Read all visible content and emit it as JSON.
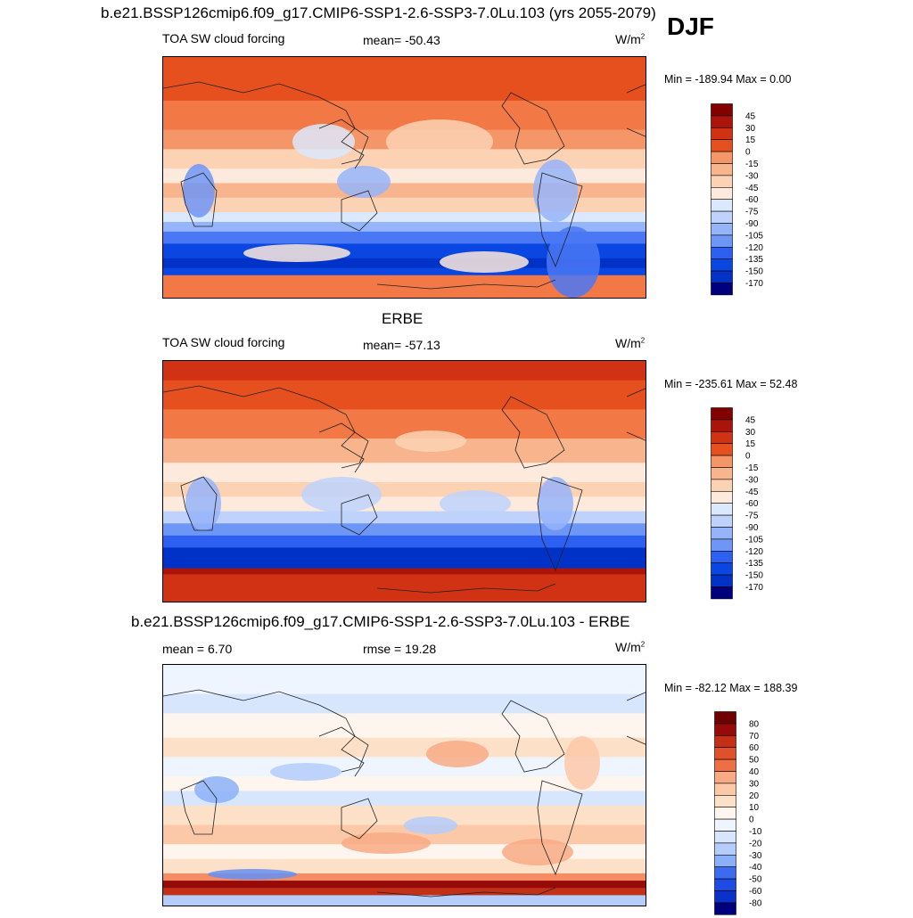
{
  "figure": {
    "season": "DJF",
    "palette_main": [
      "#00007f",
      "#0032c8",
      "#0a46e1",
      "#2d5ff0",
      "#4a78f5",
      "#6e96f7",
      "#96b4f9",
      "#bed2fb",
      "#dce8fc",
      "#fdeadc",
      "#fbd2b4",
      "#f8b48c",
      "#f59669",
      "#f27846",
      "#e6501e",
      "#d23214",
      "#aa140a",
      "#820000"
    ],
    "palette_diff": [
      "#00007f",
      "#0a32c8",
      "#1e4be6",
      "#3c6af0",
      "#6490f5",
      "#8cb0f8",
      "#b4cdfb",
      "#d7e6fd",
      "#eef5ff",
      "#fef6ee",
      "#fde0c8",
      "#fbc8a8",
      "#f8aa84",
      "#f48c64",
      "#ee6e46",
      "#e0502a",
      "#c23018",
      "#960a0a",
      "#6e0000"
    ]
  },
  "panels": [
    {
      "title": "b.e21.BSSP126cmip6.f09_g17.CMIP6-SSP1-2.6-SSP3-7.0Lu.103 (yrs 2055-2079)",
      "left_label": "TOA SW cloud forcing",
      "center_label": "mean= -50.43",
      "units_base": "W/m",
      "units_exp": "2",
      "minmax": "Min = -189.94 Max =   0.00",
      "colorbar_labels": [
        "45",
        "30",
        "15",
        "0",
        "-15",
        "-30",
        "-45",
        "-60",
        "-75",
        "-90",
        "-105",
        "-120",
        "-135",
        "-150",
        "-170"
      ],
      "map_kind": "model"
    },
    {
      "title": "ERBE",
      "left_label": "TOA SW cloud forcing",
      "center_label": "mean= -57.13",
      "units_base": "W/m",
      "units_exp": "2",
      "minmax": "Min = -235.61 Max =  52.48",
      "colorbar_labels": [
        "45",
        "30",
        "15",
        "0",
        "-15",
        "-30",
        "-45",
        "-60",
        "-75",
        "-90",
        "-105",
        "-120",
        "-135",
        "-150",
        "-170"
      ],
      "map_kind": "obs"
    },
    {
      "title": "b.e21.BSSP126cmip6.f09_g17.CMIP6-SSP1-2.6-SSP3-7.0Lu.103 - ERBE",
      "left_label": "mean =   6.70",
      "center_label": "rmse =  19.28",
      "units_base": "W/m",
      "units_exp": "2",
      "minmax": "Min = -82.12 Max = 188.39",
      "colorbar_labels": [
        "80",
        "70",
        "60",
        "50",
        "40",
        "30",
        "20",
        "10",
        "0",
        "-10",
        "-20",
        "-30",
        "-40",
        "-50",
        "-60",
        "-80"
      ],
      "map_kind": "diff"
    }
  ],
  "chart_data": [
    {
      "type": "heatmap",
      "title": "b.e21.BSSP126cmip6.f09_g17.CMIP6-SSP1-2.6-SSP3-7.0Lu.103 (yrs 2055-2079)",
      "variable": "TOA SW cloud forcing",
      "season": "DJF",
      "mean": -50.43,
      "min": -189.94,
      "max": 0.0,
      "units": "W/m2",
      "contour_levels": [
        -170,
        -150,
        -135,
        -120,
        -105,
        -90,
        -75,
        -60,
        -45,
        -30,
        -15,
        0,
        15,
        30,
        45
      ]
    },
    {
      "type": "heatmap",
      "title": "ERBE",
      "variable": "TOA SW cloud forcing",
      "season": "DJF",
      "mean": -57.13,
      "min": -235.61,
      "max": 52.48,
      "units": "W/m2",
      "contour_levels": [
        -170,
        -150,
        -135,
        -120,
        -105,
        -90,
        -75,
        -60,
        -45,
        -30,
        -15,
        0,
        15,
        30,
        45
      ]
    },
    {
      "type": "heatmap",
      "title": "b.e21.BSSP126cmip6.f09_g17.CMIP6-SSP1-2.6-SSP3-7.0Lu.103 - ERBE",
      "season": "DJF",
      "mean": 6.7,
      "rmse": 19.28,
      "min": -82.12,
      "max": 188.39,
      "units": "W/m2",
      "contour_levels": [
        -80,
        -60,
        -50,
        -40,
        -30,
        -20,
        -10,
        0,
        10,
        20,
        30,
        40,
        50,
        60,
        70,
        80
      ]
    }
  ]
}
